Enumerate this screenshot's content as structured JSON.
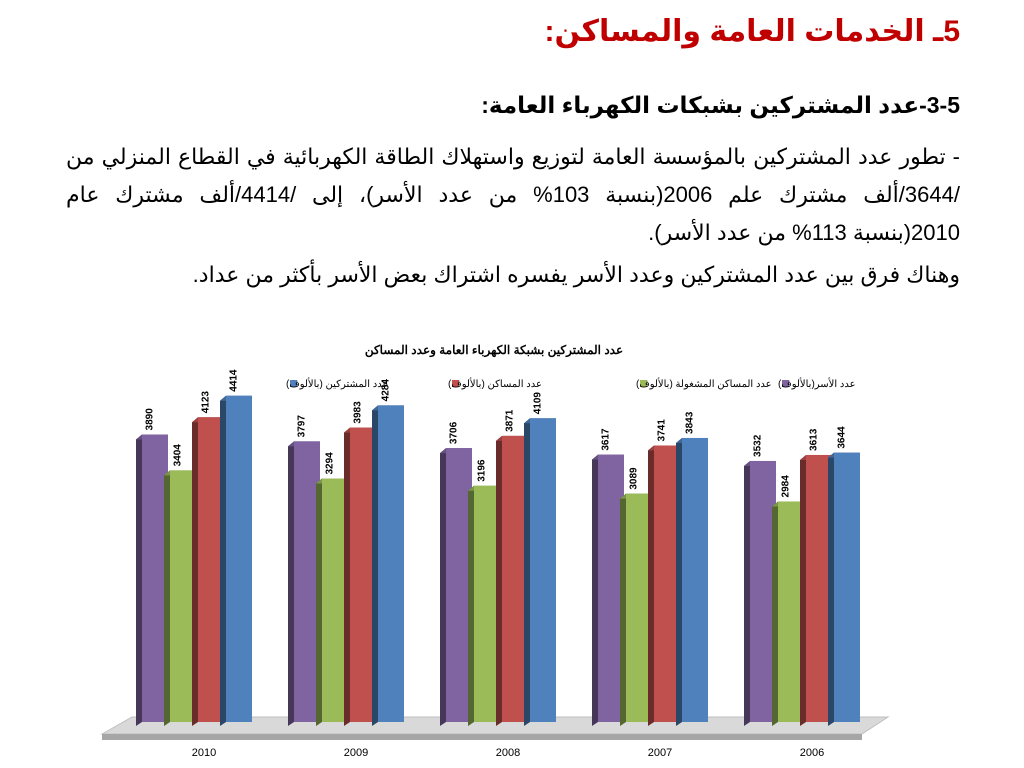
{
  "slide": {
    "title": "5ـ الخدمات العامة والمساكن:",
    "heading": "3-5-عدد المشتركين بشبكات الكهرباء العامة:",
    "paragraph1": "- تطور عدد المشتركين بالمؤسسة العامة لتوزيع واستهلاك الطاقة الكهربائية في القطاع المنزلي من /3644/ألف مشترك علم 2006(بنسبة 103% من عدد الأسر)، إلى /4414/ألف مشترك عام 2010(بنسبة 113% من عدد الأسر).",
    "paragraph2": "وهناك فرق بين عدد المشتركين وعدد الأسر يفسره اشتراك بعض الأسر بأكثر من عداد."
  },
  "chart_data": {
    "type": "bar",
    "title": "عدد المشتركين بشبكة الكهرباء العامة  وعدد المساكن",
    "categories": [
      "2010",
      "2009",
      "2008",
      "2007",
      "2006"
    ],
    "series": [
      {
        "name": "عدد الأسر(بالألوف)",
        "color": "#8064a2",
        "values": [
          3890,
          3797,
          3706,
          3617,
          3532
        ]
      },
      {
        "name": "عدد المساكن المشغولة (بالألوف)",
        "color": "#9bbb59",
        "values": [
          3404,
          3294,
          3196,
          3089,
          2984
        ]
      },
      {
        "name": "عدد المساكن (بالألوف)",
        "color": "#c0504d",
        "values": [
          4123,
          3983,
          3871,
          3741,
          3613
        ]
      },
      {
        "name": "عدد المشتركين (بالألوف)",
        "color": "#4f81bd",
        "values": [
          4414,
          4284,
          4109,
          3843,
          3644
        ]
      }
    ],
    "legend_position": "top",
    "grid": false,
    "data_labels": true,
    "ylim": [
      0,
      4600
    ]
  }
}
